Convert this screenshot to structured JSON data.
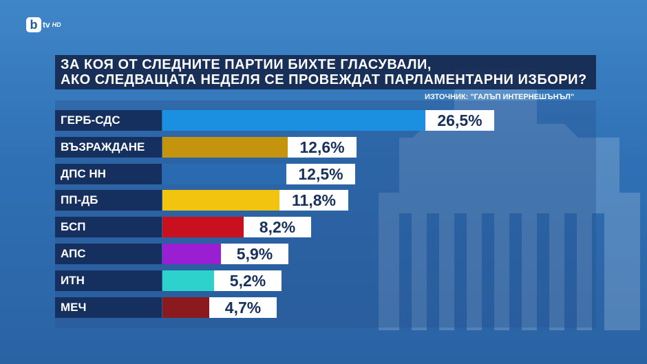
{
  "logo": {
    "mark": "b",
    "text": "tv",
    "suffix": "HD"
  },
  "title": {
    "line1": "ЗА КОЯ ОТ СЛЕДНИТЕ ПАРТИИ БИХТЕ ГЛАСУВАЛИ,",
    "line2": "АКО СЛЕДВАЩАТА НЕДЕЛЯ СЕ ПРОВЕЖДАТ ПАРЛАМЕНТАРНИ ИЗБОРИ?"
  },
  "source": "ИЗТОЧНИК: \"ГАЛЪП ИНТЕРНЕШЪНЪЛ\"",
  "chart_data": {
    "type": "bar",
    "orientation": "horizontal",
    "categories": [
      "ГЕРБ-СДС",
      "ВЪЗРАЖДАНЕ",
      "ДПС НН",
      "ПП-ДБ",
      "БСП",
      "АПС",
      "ИТН",
      "МЕЧ"
    ],
    "values": [
      26.5,
      12.6,
      12.5,
      11.8,
      8.2,
      5.9,
      5.2,
      4.7
    ],
    "value_labels": [
      "26,5%",
      "12,6%",
      "12,5%",
      "11,8%",
      "8,2%",
      "5,9%",
      "5,2%",
      "4,7%"
    ],
    "colors": [
      "#1b8fe0",
      "#c4940f",
      "#2a6ab0",
      "#f2c40f",
      "#c8101e",
      "#9a1fd2",
      "#2ed2cc",
      "#8b1a1f"
    ],
    "xlim": [
      0,
      26.5
    ],
    "legend": "none",
    "grid": false
  }
}
